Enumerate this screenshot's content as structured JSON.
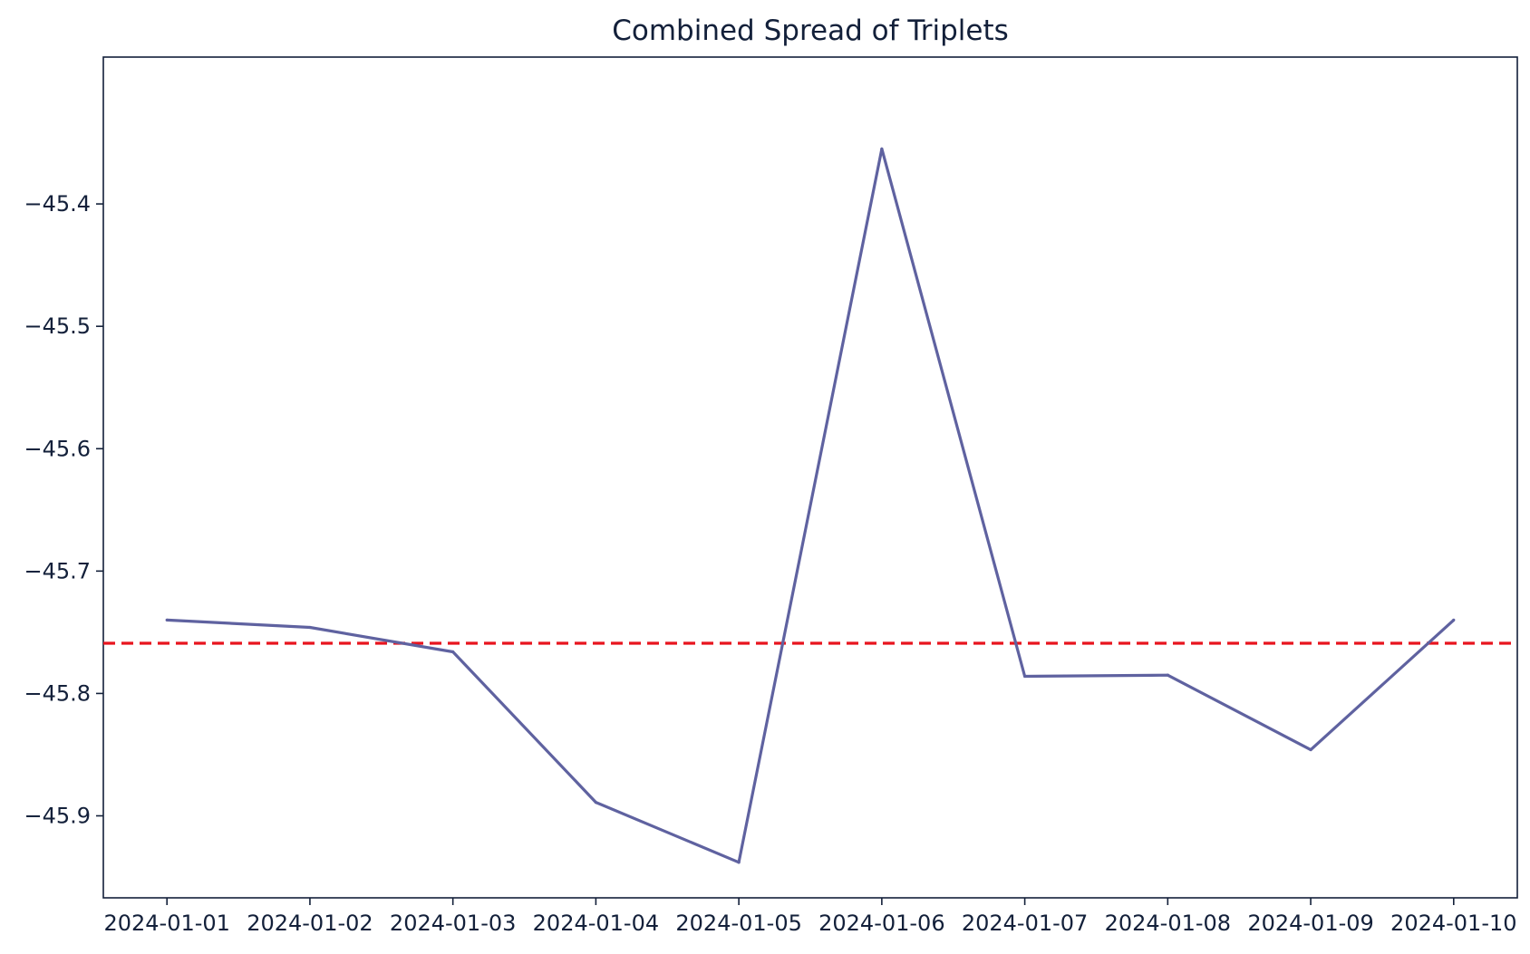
{
  "chart_data": {
    "type": "line",
    "title": "Combined Spread of Triplets",
    "xlabel": "",
    "ylabel": "",
    "x": [
      "2024-01-01",
      "2024-01-02",
      "2024-01-03",
      "2024-01-04",
      "2024-01-05",
      "2024-01-06",
      "2024-01-07",
      "2024-01-08",
      "2024-01-09",
      "2024-01-10"
    ],
    "series": [
      {
        "values": [
          -45.74,
          -45.746,
          -45.766,
          -45.889,
          -45.938,
          -45.355,
          -45.786,
          -45.785,
          -45.846,
          -45.74
        ],
        "color": "#5f62a0"
      }
    ],
    "reference_line": {
      "value": -45.759,
      "style": "dashed",
      "color": "#e8141e"
    },
    "ylim": [
      -45.967,
      -45.28
    ],
    "yticks": [
      -45.9,
      -45.8,
      -45.7,
      -45.6,
      -45.5,
      -45.4
    ],
    "ytick_labels": [
      "−45.9",
      "−45.8",
      "−45.7",
      "−45.6",
      "−45.5",
      "−45.4"
    ],
    "grid": false,
    "legend": "none"
  }
}
